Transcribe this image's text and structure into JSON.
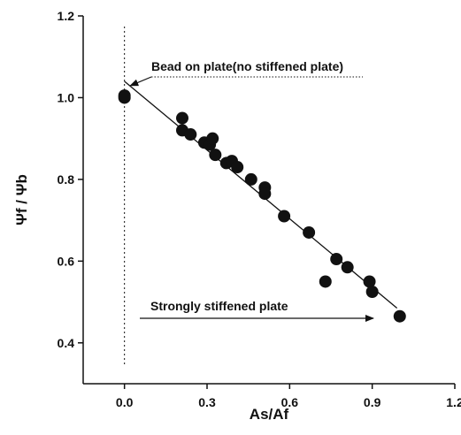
{
  "chart_data": {
    "type": "scatter",
    "title": "",
    "xlabel": "As/Af",
    "ylabel": "Ψf / Ψb",
    "xlim": [
      -0.15,
      1.2
    ],
    "ylim": [
      0.3,
      1.2
    ],
    "x_ticks": [
      "0.0",
      "0.3",
      "0.6",
      "0.9",
      "1.2"
    ],
    "y_ticks": [
      "0.4",
      "0.6",
      "0.8",
      "1.0",
      "1.2"
    ],
    "grid": false,
    "reference_line_x": 0.0,
    "series": [
      {
        "points": [
          {
            "x": 0.0,
            "y": 1.0
          },
          {
            "x": 0.0,
            "y": 1.005
          },
          {
            "x": 0.21,
            "y": 0.95
          },
          {
            "x": 0.21,
            "y": 0.92
          },
          {
            "x": 0.24,
            "y": 0.91
          },
          {
            "x": 0.29,
            "y": 0.89
          },
          {
            "x": 0.31,
            "y": 0.885
          },
          {
            "x": 0.32,
            "y": 0.9
          },
          {
            "x": 0.33,
            "y": 0.86
          },
          {
            "x": 0.37,
            "y": 0.84
          },
          {
            "x": 0.39,
            "y": 0.845
          },
          {
            "x": 0.41,
            "y": 0.83
          },
          {
            "x": 0.46,
            "y": 0.8
          },
          {
            "x": 0.51,
            "y": 0.78
          },
          {
            "x": 0.51,
            "y": 0.765
          },
          {
            "x": 0.58,
            "y": 0.71
          },
          {
            "x": 0.67,
            "y": 0.67
          },
          {
            "x": 0.73,
            "y": 0.55
          },
          {
            "x": 0.77,
            "y": 0.605
          },
          {
            "x": 0.81,
            "y": 0.585
          },
          {
            "x": 0.89,
            "y": 0.55
          },
          {
            "x": 0.9,
            "y": 0.525
          },
          {
            "x": 1.0,
            "y": 0.465
          }
        ]
      }
    ],
    "fit_line": {
      "x": [
        0.0,
        0.99
      ],
      "y": [
        1.04,
        0.485
      ]
    },
    "annotations": [
      {
        "text": "Bead on plate(no stiffened plate)",
        "target": {
          "x": 0.005,
          "y": 1.025
        }
      },
      {
        "text": "Strongly stiffened plate"
      }
    ]
  }
}
